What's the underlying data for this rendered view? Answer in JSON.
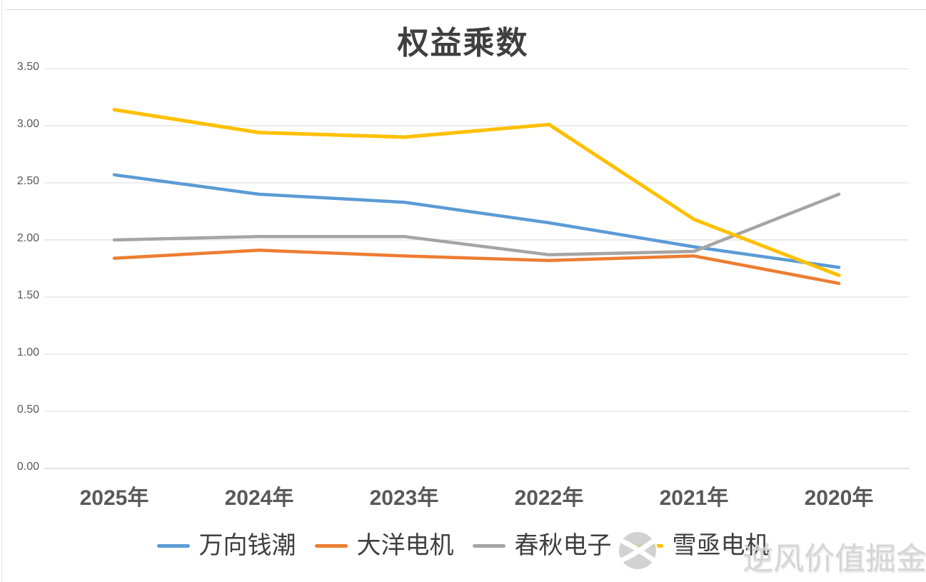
{
  "watermark": {
    "text": "逆风价值掘金",
    "logo": "pinwheel-circle-logo"
  },
  "chart_data": {
    "type": "line",
    "title": "权益乘数",
    "categories": [
      "2025年",
      "2024年",
      "2023年",
      "2022年",
      "2021年",
      "2020年"
    ],
    "series": [
      {
        "name": "万向钱潮",
        "color": "#5B9BD5",
        "values": [
          2.57,
          2.4,
          2.33,
          2.15,
          1.94,
          1.76
        ]
      },
      {
        "name": "大洋电机",
        "color": "#ED7D31",
        "values": [
          1.84,
          1.91,
          1.86,
          1.82,
          1.86,
          1.62
        ]
      },
      {
        "name": "春秋电子",
        "color": "#A5A5A5",
        "values": [
          2.0,
          2.03,
          2.03,
          1.87,
          1.9,
          2.4
        ]
      },
      {
        "name": "雪亟电机",
        "color": "#FFC000",
        "values": [
          3.14,
          2.94,
          2.9,
          3.01,
          2.18,
          1.69
        ]
      }
    ],
    "y_ticks": [
      "3.50",
      "3.00",
      "2.50",
      "2.00",
      "1.50",
      "1.00",
      "0.50",
      "0.00"
    ],
    "ylim": [
      0.0,
      3.5
    ],
    "grid": true,
    "gridline_color": "#d9d9d9",
    "legend_position": "bottom",
    "xlabel": "",
    "ylabel": ""
  }
}
